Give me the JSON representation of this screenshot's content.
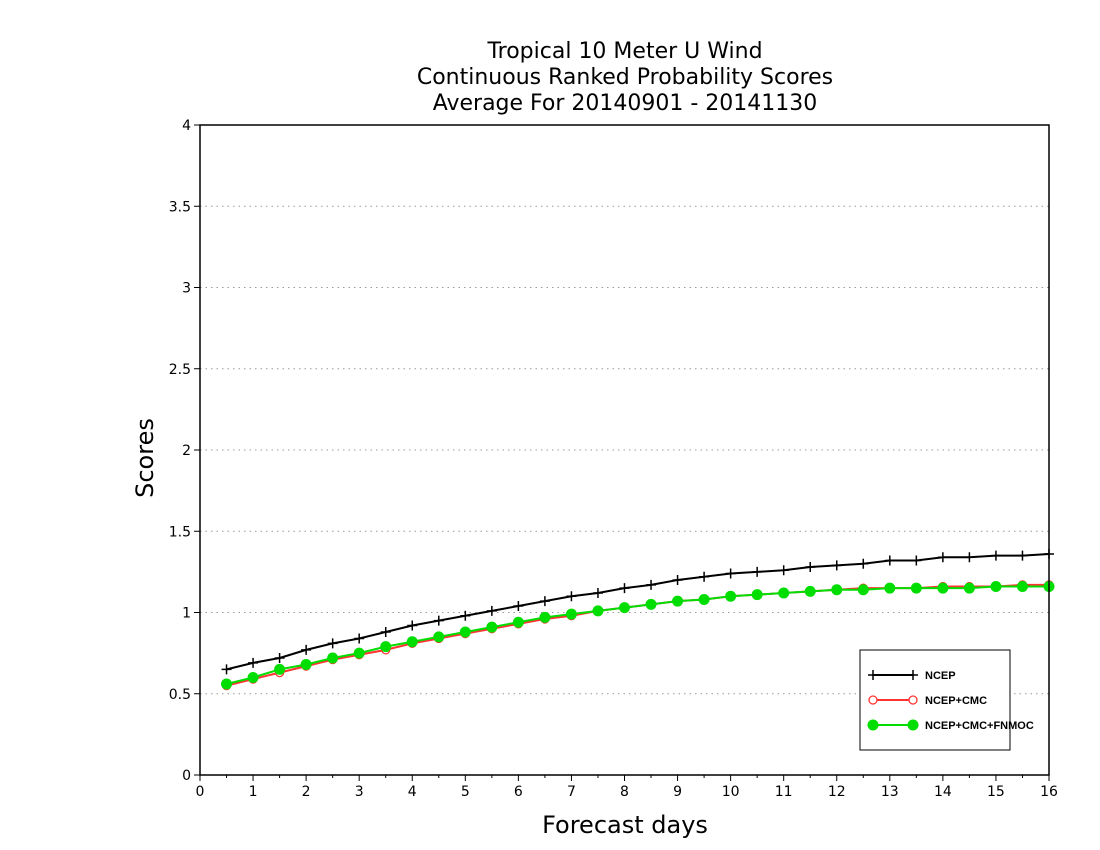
{
  "chart_data": {
    "type": "line",
    "title_lines": [
      "Tropical 10 Meter U Wind",
      "Continuous Ranked Probability Scores",
      "Average For 20140901 - 20141130"
    ],
    "xlabel": "Forecast days",
    "ylabel": "Scores",
    "xlim": [
      0,
      16
    ],
    "ylim": [
      0,
      4
    ],
    "x_ticks": [
      0,
      1,
      2,
      3,
      4,
      5,
      6,
      7,
      8,
      9,
      10,
      11,
      12,
      13,
      14,
      15,
      16
    ],
    "y_ticks": [
      0,
      0.5,
      1,
      1.5,
      2,
      2.5,
      3,
      3.5,
      4
    ],
    "y_tick_labels": [
      "0",
      "0.5",
      "1",
      "1.5",
      "2",
      "2.5",
      "3",
      "3.5",
      "4"
    ],
    "grid": "horizontal dotted",
    "legend_position": "bottom-right",
    "x": [
      0.5,
      1,
      1.5,
      2,
      2.5,
      3,
      3.5,
      4,
      4.5,
      5,
      5.5,
      6,
      6.5,
      7,
      7.5,
      8,
      8.5,
      9,
      9.5,
      10,
      10.5,
      11,
      11.5,
      12,
      12.5,
      13,
      13.5,
      14,
      14.5,
      15,
      15.5,
      16
    ],
    "series": [
      {
        "name": "NCEP",
        "color": "#000000",
        "marker": "plus",
        "values": [
          0.65,
          0.69,
          0.72,
          0.77,
          0.81,
          0.84,
          0.88,
          0.92,
          0.95,
          0.98,
          1.01,
          1.04,
          1.07,
          1.1,
          1.12,
          1.15,
          1.17,
          1.2,
          1.22,
          1.24,
          1.25,
          1.26,
          1.28,
          1.29,
          1.3,
          1.32,
          1.32,
          1.34,
          1.34,
          1.35,
          1.35,
          1.36
        ]
      },
      {
        "name": "NCEP+CMC",
        "color": "#ff3333",
        "marker": "open-circle",
        "values": [
          0.55,
          0.59,
          0.63,
          0.67,
          0.71,
          0.74,
          0.77,
          0.81,
          0.84,
          0.87,
          0.9,
          0.93,
          0.96,
          0.98,
          1.01,
          1.03,
          1.05,
          1.07,
          1.08,
          1.1,
          1.11,
          1.12,
          1.13,
          1.14,
          1.15,
          1.15,
          1.15,
          1.16,
          1.16,
          1.16,
          1.17,
          1.17
        ]
      },
      {
        "name": "NCEP+CMC+FNMOC",
        "color": "#00dd00",
        "marker": "filled-circle",
        "values": [
          0.56,
          0.6,
          0.65,
          0.68,
          0.72,
          0.75,
          0.79,
          0.82,
          0.85,
          0.88,
          0.91,
          0.94,
          0.97,
          0.99,
          1.01,
          1.03,
          1.05,
          1.07,
          1.08,
          1.1,
          1.11,
          1.12,
          1.13,
          1.14,
          1.14,
          1.15,
          1.15,
          1.15,
          1.15,
          1.16,
          1.16,
          1.16
        ]
      }
    ]
  }
}
